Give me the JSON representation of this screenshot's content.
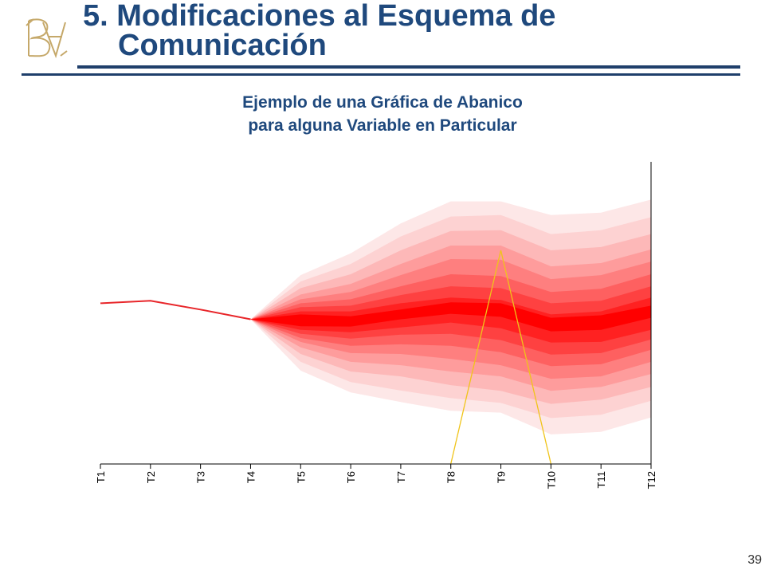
{
  "header": {
    "title_line1": "5. Modificaciones al Esquema de",
    "title_line2": "Comunicación",
    "logo_icon": "banco-de-mexico-monogram-icon"
  },
  "colors": {
    "title": "#1f497d",
    "rule": "#1f3f6b",
    "fan_center": "#ff0000",
    "fan_outer": "#fde7e7",
    "history_line": "#e8262a",
    "marker_line": "#f0c419",
    "axis": "#000000"
  },
  "chart_data": {
    "type": "area",
    "title_line1": "Ejemplo de una Gráfica de Abanico",
    "title_line2": "para alguna Variable en Particular",
    "categories": [
      "T1",
      "T2",
      "T3",
      "T4",
      "T5",
      "T6",
      "T7",
      "T8",
      "T9",
      "T10",
      "T11",
      "T12"
    ],
    "ylim": [
      0,
      100
    ],
    "y_axis_side": "right",
    "y_tick_labels": false,
    "grid": false,
    "history": {
      "x": [
        "T1",
        "T2",
        "T3",
        "T4"
      ],
      "values": [
        53.2,
        54.0,
        51.1,
        47.9
      ]
    },
    "fan": {
      "x": [
        "T4",
        "T5",
        "T6",
        "T7",
        "T8",
        "T9",
        "T10",
        "T11",
        "T12"
      ],
      "bands_outer_to_inner": [
        {
          "lower": [
            47.9,
            30.9,
            23.7,
            20.5,
            17.6,
            17.0,
            9.8,
            10.6,
            15.4
          ],
          "upper": [
            47.9,
            62.5,
            69.7,
            79.6,
            86.9,
            86.9,
            82.4,
            83.2,
            87.5
          ]
        },
        {
          "lower": [
            47.9,
            33.8,
            27.1,
            24.3,
            21.8,
            20.2,
            15.2,
            16.3,
            20.9
          ],
          "upper": [
            47.9,
            60.4,
            66.2,
            75.3,
            81.9,
            82.4,
            76.1,
            77.4,
            81.7
          ]
        },
        {
          "lower": [
            47.9,
            36.4,
            30.6,
            29.0,
            26.1,
            24.2,
            19.9,
            21.3,
            25.5
          ],
          "upper": [
            47.9,
            58.2,
            62.8,
            70.7,
            77.1,
            77.4,
            70.7,
            71.8,
            76.1
          ]
        },
        {
          "lower": [
            47.9,
            38.6,
            33.8,
            32.7,
            30.6,
            29.0,
            24.2,
            25.5,
            29.8
          ],
          "upper": [
            47.9,
            56.1,
            59.6,
            66.2,
            72.3,
            72.3,
            65.4,
            66.5,
            71.0
          ]
        },
        {
          "lower": [
            47.9,
            40.4,
            36.7,
            36.4,
            34.8,
            32.7,
            28.2,
            29.0,
            33.8
          ],
          "upper": [
            47.9,
            54.5,
            56.9,
            62.5,
            67.8,
            67.6,
            61.2,
            62.5,
            67.0
          ]
        },
        {
          "lower": [
            47.9,
            41.7,
            39.1,
            39.6,
            39.1,
            37.0,
            32.4,
            33.0,
            37.8
          ],
          "upper": [
            47.9,
            53.2,
            54.5,
            58.8,
            62.8,
            62.2,
            56.9,
            58.0,
            62.8
          ]
        },
        {
          "lower": [
            47.9,
            43.1,
            41.5,
            42.8,
            43.1,
            41.0,
            36.2,
            36.7,
            41.2
          ],
          "upper": [
            47.9,
            51.9,
            52.4,
            55.9,
            58.8,
            58.2,
            53.2,
            54.0,
            58.8
          ]
        },
        {
          "lower": [
            47.9,
            44.4,
            43.6,
            45.2,
            46.8,
            44.9,
            40.2,
            40.4,
            44.4
          ],
          "upper": [
            47.9,
            50.5,
            50.5,
            53.2,
            55.1,
            54.3,
            49.5,
            50.5,
            55.1
          ]
        },
        {
          "lower": [
            47.9,
            45.6,
            45.5,
            47.9,
            49.7,
            48.7,
            43.9,
            44.4,
            48.4
          ],
          "upper": [
            47.9,
            49.5,
            48.9,
            51.1,
            53.5,
            53.2,
            48.4,
            49.2,
            52.4
          ]
        }
      ]
    },
    "marker_line": {
      "x": [
        "T8",
        "T9",
        "T10"
      ],
      "values": [
        0,
        70.7,
        0
      ]
    }
  },
  "footer": {
    "page_number": "39"
  }
}
